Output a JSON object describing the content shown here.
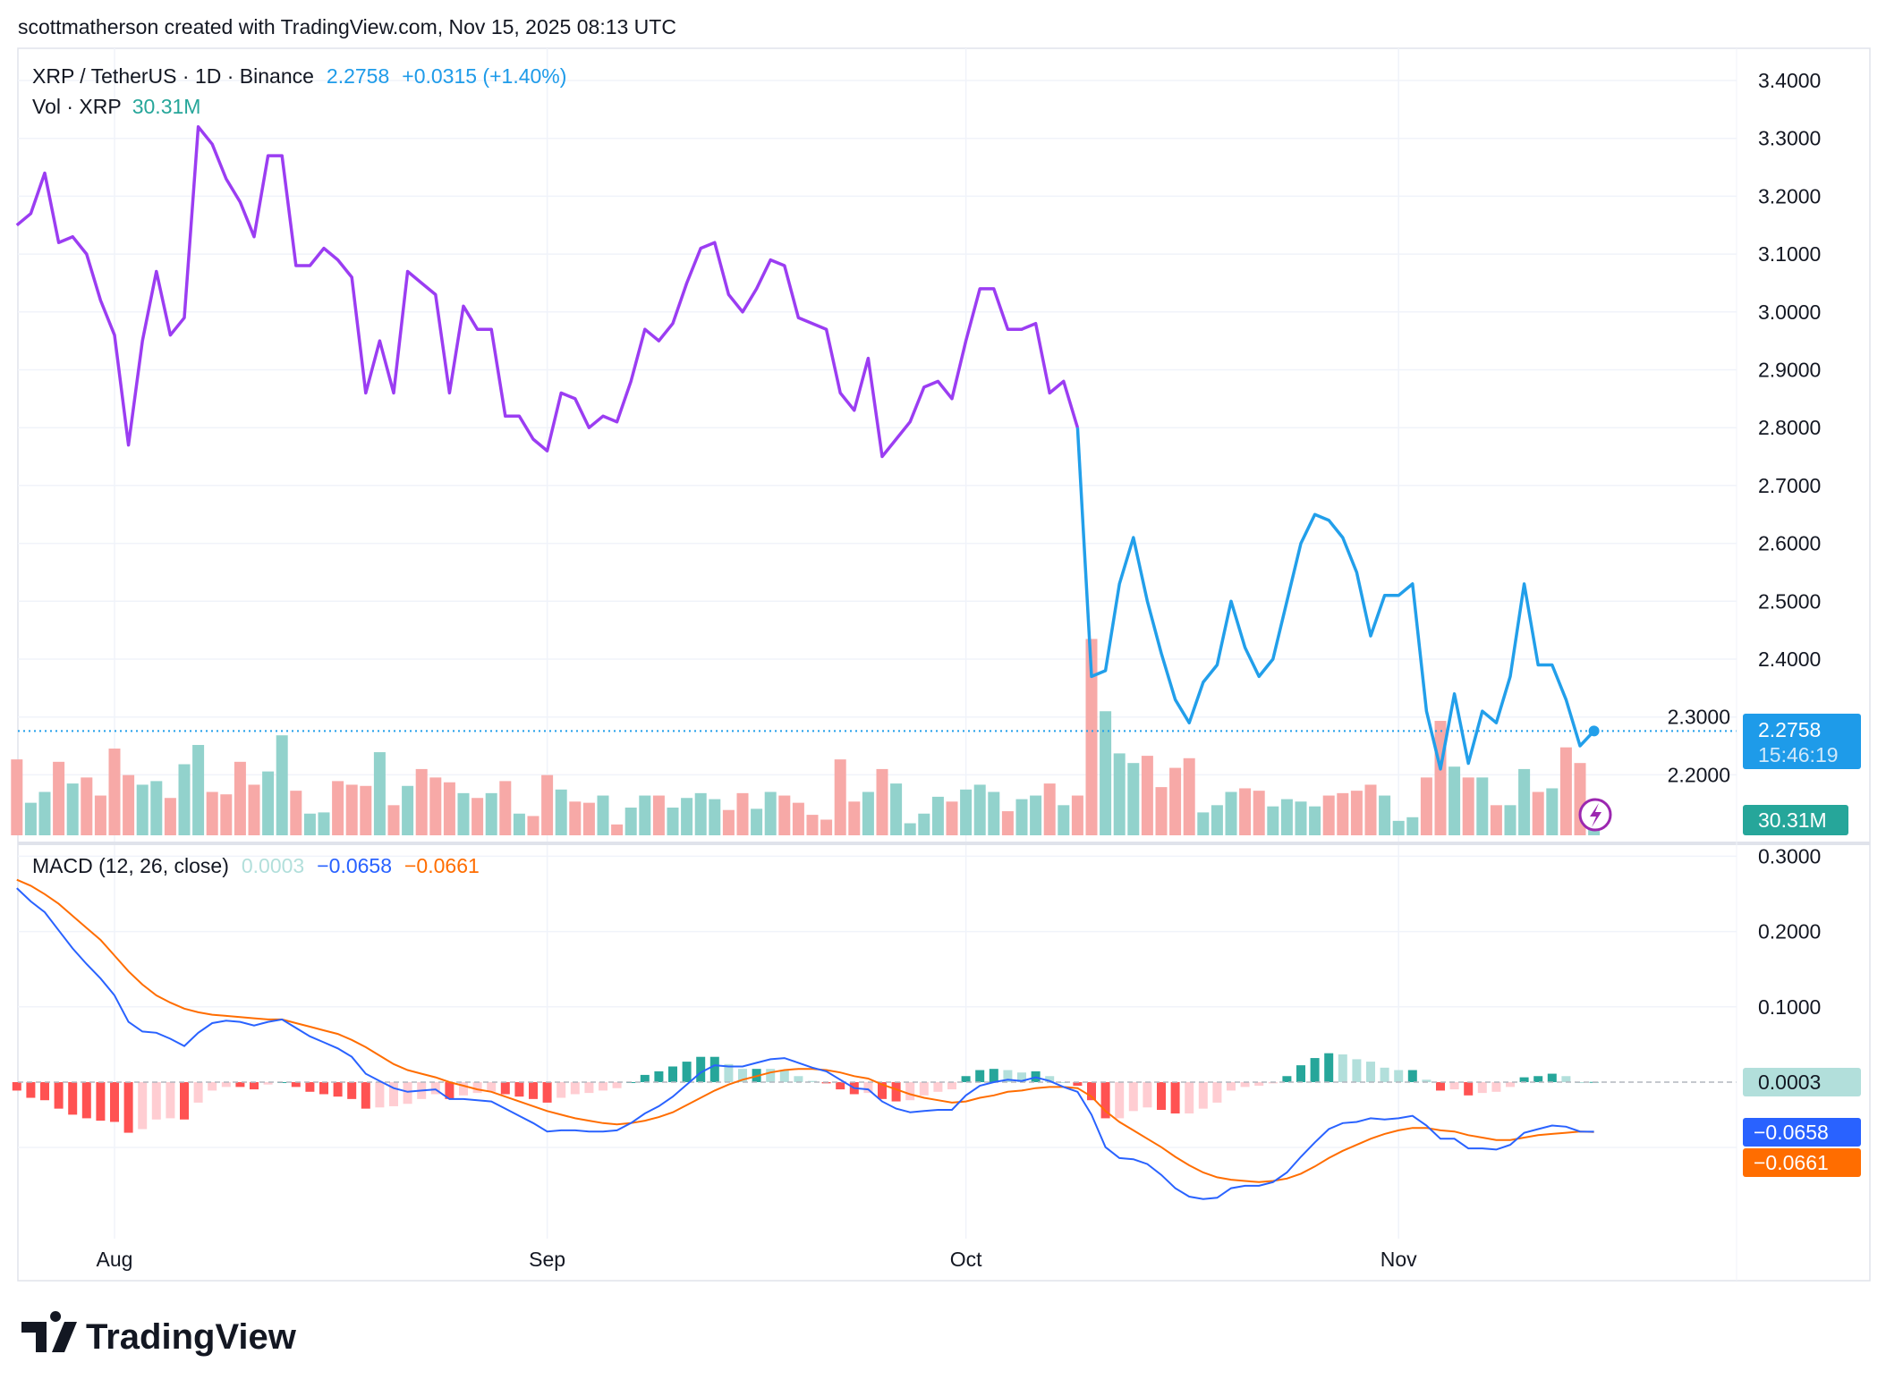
{
  "header": {
    "attribution": "scottmatherson created with TradingView.com, Nov 15, 2025 08:13 UTC"
  },
  "legend": {
    "symbol": "XRP / TetherUS · 1D · Binance",
    "last": "2.2758",
    "change": "+0.0315 (+1.40%)",
    "vol_label": "Vol · XRP",
    "vol_value": "30.31M",
    "macd_label": "MACD (12, 26, close)",
    "macd_hist": "0.0003",
    "macd_line": "−0.0658",
    "macd_signal": "−0.0661"
  },
  "axis_labels": {
    "price_last": "2.2758",
    "countdown": "15:46:19",
    "vol_last": "30.31M",
    "macd_hist": "0.0003",
    "macd_line": "−0.0658",
    "macd_signal": "−0.0661"
  },
  "logo": {
    "text": "TradingView"
  },
  "colors": {
    "price_early": "#9b3df2",
    "price_late": "#229fea",
    "up_vol": "#92d2cc",
    "down_vol": "#f7a9a7",
    "macd": "#2962ff",
    "signal": "#ff6d00",
    "hist_up_strong": "#26a69a",
    "hist_up_weak": "#b2dfdb",
    "hist_down_strong": "#ff5252",
    "hist_down_weak": "#ffcdd2",
    "last_label": "#1e9be9",
    "vol_label": "#26a69a"
  },
  "chart_data": {
    "type": "line",
    "price_ylim": [
      2.1,
      3.45
    ],
    "price_ticks": [
      "3.4000",
      "3.3000",
      "3.2000",
      "3.1000",
      "3.0000",
      "2.9000",
      "2.8000",
      "2.7000",
      "2.6000",
      "2.5000",
      "2.4000",
      "2.3000",
      "2.2000"
    ],
    "macd_ticks": [
      "0.3000",
      "0.2000",
      "0.1000"
    ],
    "x_ticks": [
      {
        "label": "Aug",
        "date": "2025-08-01"
      },
      {
        "label": "Sep",
        "date": "2025-09-01"
      },
      {
        "label": "Oct",
        "date": "2025-10-01"
      },
      {
        "label": "Nov",
        "date": "2025-11-01"
      }
    ],
    "grid": true,
    "dates": [
      "2025-07-25",
      "2025-07-26",
      "2025-07-27",
      "2025-07-28",
      "2025-07-29",
      "2025-07-30",
      "2025-07-31",
      "2025-08-01",
      "2025-08-02",
      "2025-08-03",
      "2025-08-04",
      "2025-08-05",
      "2025-08-06",
      "2025-08-07",
      "2025-08-08",
      "2025-08-09",
      "2025-08-10",
      "2025-08-11",
      "2025-08-12",
      "2025-08-13",
      "2025-08-14",
      "2025-08-15",
      "2025-08-16",
      "2025-08-17",
      "2025-08-18",
      "2025-08-19",
      "2025-08-20",
      "2025-08-21",
      "2025-08-22",
      "2025-08-23",
      "2025-08-24",
      "2025-08-25",
      "2025-08-26",
      "2025-08-27",
      "2025-08-28",
      "2025-08-29",
      "2025-08-30",
      "2025-08-31",
      "2025-09-01",
      "2025-09-02",
      "2025-09-03",
      "2025-09-04",
      "2025-09-05",
      "2025-09-06",
      "2025-09-07",
      "2025-09-08",
      "2025-09-09",
      "2025-09-10",
      "2025-09-11",
      "2025-09-12",
      "2025-09-13",
      "2025-09-14",
      "2025-09-15",
      "2025-09-16",
      "2025-09-17",
      "2025-09-18",
      "2025-09-19",
      "2025-09-20",
      "2025-09-21",
      "2025-09-22",
      "2025-09-23",
      "2025-09-24",
      "2025-09-25",
      "2025-09-26",
      "2025-09-27",
      "2025-09-28",
      "2025-09-29",
      "2025-09-30",
      "2025-10-01",
      "2025-10-02",
      "2025-10-03",
      "2025-10-04",
      "2025-10-05",
      "2025-10-06",
      "2025-10-07",
      "2025-10-08",
      "2025-10-09",
      "2025-10-10",
      "2025-10-11",
      "2025-10-12",
      "2025-10-13",
      "2025-10-14",
      "2025-10-15",
      "2025-10-16",
      "2025-10-17",
      "2025-10-18",
      "2025-10-19",
      "2025-10-20",
      "2025-10-21",
      "2025-10-22",
      "2025-10-23",
      "2025-10-24",
      "2025-10-25",
      "2025-10-26",
      "2025-10-27",
      "2025-10-28",
      "2025-10-29",
      "2025-10-30",
      "2025-10-31",
      "2025-11-01",
      "2025-11-02",
      "2025-11-03",
      "2025-11-04",
      "2025-11-05",
      "2025-11-06",
      "2025-11-07",
      "2025-11-08",
      "2025-11-09",
      "2025-11-10",
      "2025-11-11",
      "2025-11-12",
      "2025-11-13",
      "2025-11-14",
      "2025-11-15"
    ],
    "close": [
      3.15,
      3.17,
      3.24,
      3.12,
      3.13,
      3.1,
      3.02,
      2.96,
      2.77,
      2.95,
      3.07,
      2.96,
      2.99,
      3.32,
      3.29,
      3.23,
      3.19,
      3.13,
      3.27,
      3.27,
      3.08,
      3.08,
      3.11,
      3.09,
      3.06,
      2.86,
      2.95,
      2.86,
      3.07,
      3.05,
      3.03,
      2.86,
      3.01,
      2.97,
      2.97,
      2.82,
      2.82,
      2.78,
      2.76,
      2.86,
      2.85,
      2.8,
      2.82,
      2.81,
      2.88,
      2.97,
      2.95,
      2.98,
      3.05,
      3.11,
      3.12,
      3.03,
      3.0,
      3.04,
      3.09,
      3.08,
      2.99,
      2.98,
      2.97,
      2.86,
      2.83,
      2.92,
      2.75,
      2.78,
      2.81,
      2.87,
      2.88,
      2.85,
      2.95,
      3.04,
      3.04,
      2.97,
      2.97,
      2.98,
      2.86,
      2.88,
      2.8,
      2.37,
      2.38,
      2.53,
      2.61,
      2.5,
      2.41,
      2.33,
      2.29,
      2.36,
      2.39,
      2.5,
      2.42,
      2.37,
      2.4,
      2.5,
      2.6,
      2.65,
      2.64,
      2.61,
      2.55,
      2.44,
      2.51,
      2.51,
      2.53,
      2.31,
      2.21,
      2.34,
      2.22,
      2.31,
      2.29,
      2.37,
      2.53,
      2.39,
      2.39,
      2.33,
      2.25,
      2.2758
    ],
    "volume_m": [
      252,
      108,
      144,
      244,
      172,
      192,
      132,
      288,
      200,
      168,
      180,
      124,
      236,
      300,
      144,
      136,
      244,
      168,
      212,
      332,
      148,
      72,
      76,
      180,
      168,
      164,
      276,
      100,
      164,
      220,
      192,
      176,
      140,
      124,
      140,
      180,
      72,
      64,
      200,
      152,
      112,
      108,
      132,
      36,
      92,
      132,
      132,
      92,
      124,
      140,
      120,
      84,
      140,
      88,
      144,
      132,
      108,
      68,
      52,
      252,
      112,
      144,
      220,
      172,
      40,
      72,
      128,
      112,
      152,
      168,
      144,
      80,
      120,
      132,
      172,
      100,
      132,
      652,
      412,
      272,
      240,
      264,
      160,
      224,
      256,
      76,
      100,
      144,
      156,
      148,
      96,
      120,
      112,
      96,
      132,
      140,
      148,
      168,
      132,
      48,
      60,
      192,
      380,
      228,
      192,
      192,
      100,
      100,
      220,
      144,
      156,
      292,
      240,
      30.31
    ],
    "macd": [
      0.2576,
      0.24,
      0.2256,
      0.2016,
      0.1776,
      0.1568,
      0.1376,
      0.1152,
      0.08,
      0.0672,
      0.0656,
      0.0576,
      0.048,
      0.0656,
      0.0784,
      0.0816,
      0.08,
      0.0752,
      0.08,
      0.0832,
      0.072,
      0.0608,
      0.0528,
      0.0448,
      0.0336,
      0.0112,
      0.0016,
      -0.008,
      -0.0128,
      -0.0112,
      -0.0096,
      -0.0224,
      -0.0224,
      -0.024,
      -0.0256,
      -0.0352,
      -0.0448,
      -0.0544,
      -0.0656,
      -0.064,
      -0.064,
      -0.0656,
      -0.0656,
      -0.064,
      -0.0544,
      -0.0416,
      -0.032,
      -0.0192,
      -0.0032,
      0.0128,
      0.0224,
      0.0208,
      0.0208,
      0.0256,
      0.0304,
      0.032,
      0.0256,
      0.0192,
      0.0144,
      0.0032,
      -0.008,
      -0.0096,
      -0.0256,
      -0.0352,
      -0.04,
      -0.0384,
      -0.0368,
      -0.0368,
      -0.0176,
      -0.0048,
      0,
      0.0032,
      0.0016,
      0.0064,
      0.0016,
      -0.0064,
      -0.0128,
      -0.0432,
      -0.0864,
      -0.1008,
      -0.1024,
      -0.1088,
      -0.1232,
      -0.1408,
      -0.152,
      -0.1552,
      -0.1536,
      -0.1408,
      -0.1376,
      -0.1376,
      -0.1328,
      -0.12,
      -0.0992,
      -0.08,
      -0.0624,
      -0.0544,
      -0.0528,
      -0.048,
      -0.0496,
      -0.048,
      -0.0448,
      -0.0576,
      -0.0752,
      -0.0752,
      -0.088,
      -0.088,
      -0.0896,
      -0.0832,
      -0.0672,
      -0.0624,
      -0.0576,
      -0.0592,
      -0.0656,
      -0.0658
    ],
    "signal": [
      0.2688,
      0.2608,
      0.2496,
      0.2368,
      0.2208,
      0.2048,
      0.1888,
      0.168,
      0.1472,
      0.1296,
      0.1152,
      0.1056,
      0.0976,
      0.0928,
      0.0896,
      0.088,
      0.0864,
      0.0848,
      0.0832,
      0.0832,
      0.0784,
      0.0736,
      0.0688,
      0.064,
      0.056,
      0.0464,
      0.0352,
      0.024,
      0.016,
      0.0112,
      0.0064,
      0,
      -0.0048,
      -0.0096,
      -0.0128,
      -0.0192,
      -0.0256,
      -0.032,
      -0.0384,
      -0.0432,
      -0.048,
      -0.0512,
      -0.0544,
      -0.056,
      -0.0544,
      -0.0512,
      -0.0464,
      -0.04,
      -0.0304,
      -0.0208,
      -0.0112,
      -0.0032,
      0.0032,
      0.008,
      0.0128,
      0.016,
      0.0176,
      0.0176,
      0.016,
      0.0128,
      0.008,
      0.0048,
      -0.0032,
      -0.0096,
      -0.016,
      -0.0208,
      -0.024,
      -0.0272,
      -0.0256,
      -0.0208,
      -0.0176,
      -0.0128,
      -0.0112,
      -0.008,
      -0.0064,
      -0.0064,
      -0.008,
      -0.0192,
      -0.0384,
      -0.0528,
      -0.064,
      -0.0752,
      -0.0864,
      -0.0992,
      -0.1104,
      -0.12,
      -0.1264,
      -0.1296,
      -0.1312,
      -0.1328,
      -0.1312,
      -0.128,
      -0.1216,
      -0.112,
      -0.1008,
      -0.0912,
      -0.0832,
      -0.0752,
      -0.0688,
      -0.064,
      -0.0608,
      -0.0608,
      -0.064,
      -0.0656,
      -0.0704,
      -0.0736,
      -0.0768,
      -0.0768,
      -0.0736,
      -0.0704,
      -0.0688,
      -0.0672,
      -0.0656,
      -0.0661
    ],
    "price_color_change_date": "2025-10-09"
  }
}
